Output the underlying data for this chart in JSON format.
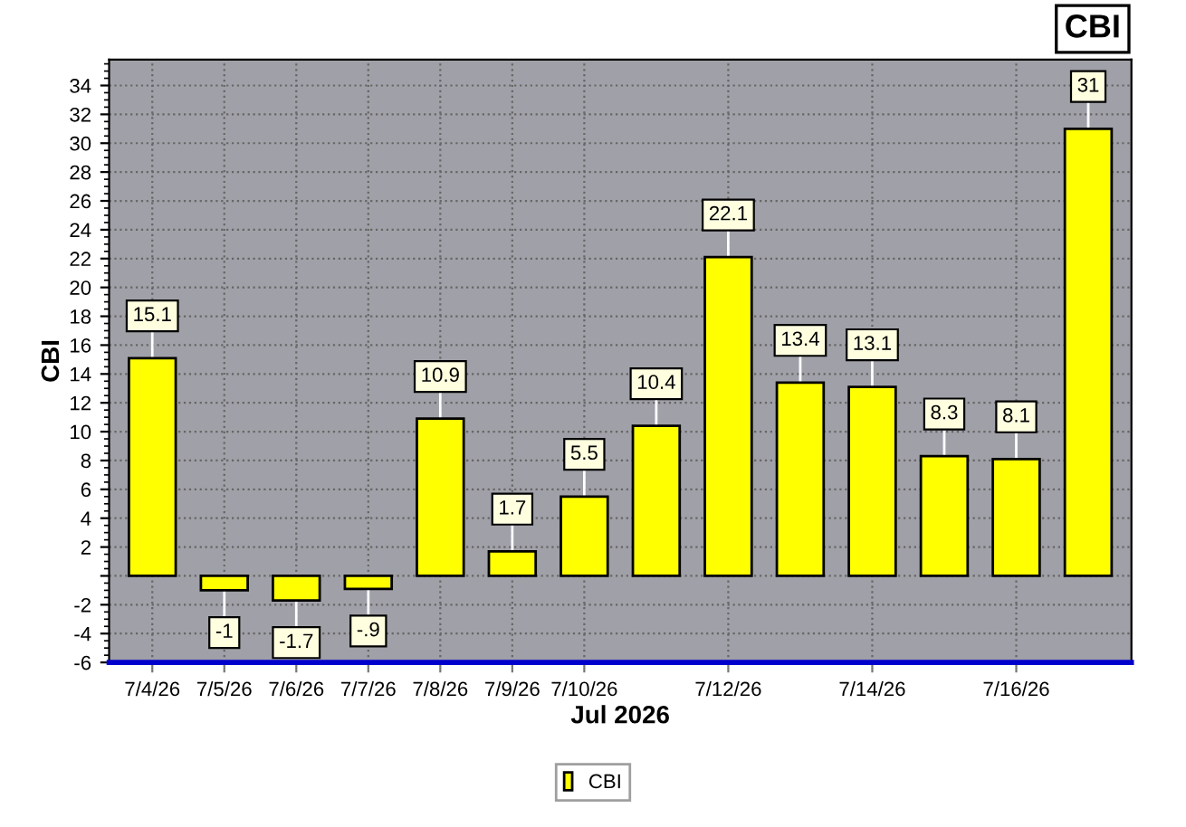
{
  "chart_data": {
    "type": "bar",
    "title": "CBI",
    "xlabel": "Jul 2026",
    "ylabel": "CBI",
    "categories": [
      "7/4/26",
      "7/5/26",
      "7/6/26",
      "7/7/26",
      "7/8/26",
      "7/9/26",
      "7/10/26",
      null,
      "7/12/26",
      null,
      "7/14/26",
      null,
      "7/16/26",
      null
    ],
    "series": [
      {
        "name": "CBI",
        "color": "#ffff00",
        "values": [
          15.1,
          -1,
          -1.7,
          -0.9,
          10.9,
          1.7,
          5.5,
          10.4,
          22.1,
          13.4,
          13.1,
          8.3,
          8.1,
          31
        ],
        "value_labels": [
          "15.1",
          "-1",
          "-1.7",
          "-.9",
          "10.9",
          "1.7",
          "5.5",
          "10.4",
          "22.1",
          "13.4",
          "13.1",
          "8.3",
          "8.1",
          "31"
        ]
      }
    ],
    "ylim": [
      -6,
      35.8
    ],
    "yticks": [
      -6,
      -4,
      -2,
      {
        "value": 0,
        "label": null
      },
      2,
      4,
      6,
      8,
      10,
      12,
      14,
      16,
      18,
      20,
      22,
      24,
      26,
      28,
      30,
      32,
      34
    ],
    "grid": true,
    "legend": "bottom"
  }
}
